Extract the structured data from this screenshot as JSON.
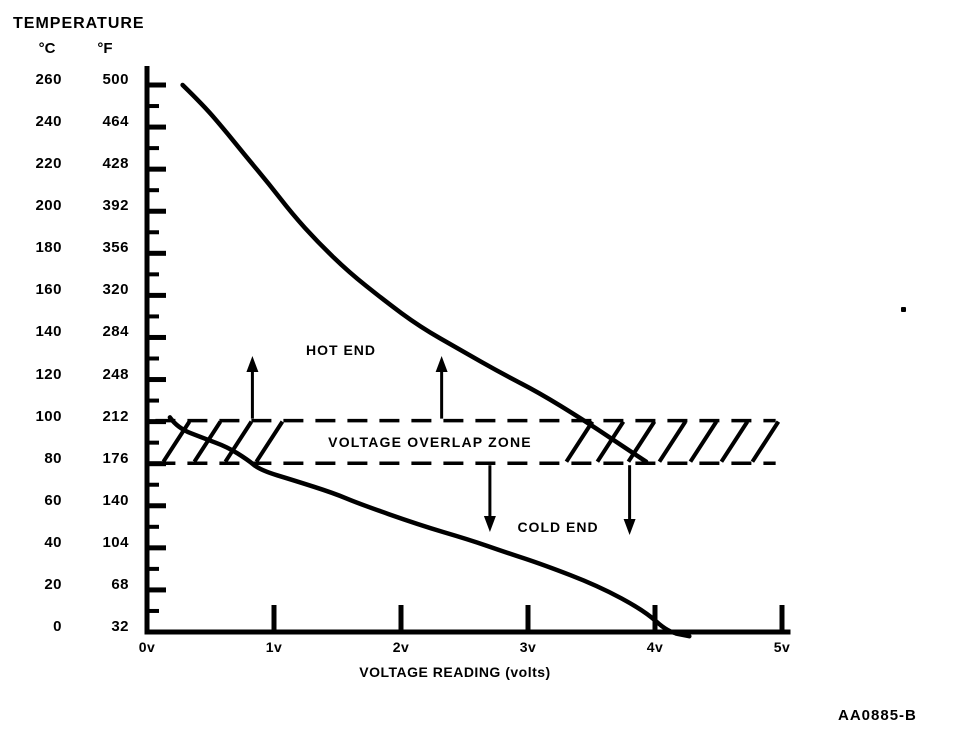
{
  "header": {
    "title": "TEMPERATURE",
    "celsius_unit": "°C",
    "fahrenheit_unit": "°F"
  },
  "y_axis": {
    "celsius_labels": [
      "260",
      "240",
      "220",
      "200",
      "180",
      "160",
      "140",
      "120",
      "100",
      "80",
      "60",
      "40",
      "20",
      "0"
    ],
    "fahrenheit_labels": [
      "500",
      "464",
      "428",
      "392",
      "356",
      "320",
      "284",
      "248",
      "212",
      "176",
      "140",
      "104",
      "68",
      "32"
    ]
  },
  "x_axis": {
    "tick_labels": [
      "0v",
      "1v",
      "2v",
      "3v",
      "4v",
      "5v"
    ],
    "axis_label": "VOLTAGE READING (volts)"
  },
  "annotations": {
    "hot_end": "HOT END",
    "overlap_zone": "VOLTAGE OVERLAP ZONE",
    "cold_end": "COLD END",
    "figure_code": "AA0885-B"
  },
  "colors": {
    "ink": "#000000",
    "paper": "#ffffff"
  },
  "chart_data": {
    "type": "line",
    "title": "",
    "xlabel": "VOLTAGE READING (volts)",
    "ylabel_primary": "TEMPERATURE °C",
    "ylabel_secondary": "TEMPERATURE °F",
    "xlim_volts": [
      0,
      5
    ],
    "ylim_celsius": [
      0,
      260
    ],
    "x_tick_step_volts": 1,
    "y_label_step_celsius": 20,
    "y_minor_tick_step_celsius": 10,
    "grid": false,
    "legend": "none (curves labeled inline)",
    "overlap_zone": {
      "label": "VOLTAGE OVERLAP ZONE",
      "celsius_range": [
        80,
        100
      ],
      "fahrenheit_range": [
        176,
        212
      ],
      "volts_extent": [
        0.2,
        4.95
      ],
      "style": "diagonal-hatched band with dashed top/bottom borders"
    },
    "arrows": {
      "up_volts": [
        0.83,
        2.32
      ],
      "down_volts": [
        2.7,
        3.8
      ]
    },
    "series": [
      {
        "name": "HOT END",
        "points_volts_celsius": [
          [
            0.28,
            260
          ],
          [
            0.45,
            250
          ],
          [
            0.62,
            238
          ],
          [
            0.78,
            226
          ],
          [
            0.96,
            213
          ],
          [
            1.14,
            199
          ],
          [
            1.35,
            185
          ],
          [
            1.59,
            171
          ],
          [
            1.86,
            158
          ],
          [
            2.15,
            145
          ],
          [
            2.47,
            134
          ],
          [
            2.79,
            123
          ],
          [
            3.08,
            114
          ],
          [
            3.43,
            101
          ],
          [
            3.68,
            91
          ],
          [
            3.93,
            81
          ]
        ]
      },
      {
        "name": "COLD END",
        "points_volts_celsius": [
          [
            0.18,
            102
          ],
          [
            0.24,
            97
          ],
          [
            0.45,
            92
          ],
          [
            0.63,
            88
          ],
          [
            0.79,
            82
          ],
          [
            0.89,
            77
          ],
          [
            1.16,
            72
          ],
          [
            1.47,
            66
          ],
          [
            1.67,
            61
          ],
          [
            2.14,
            51
          ],
          [
            2.53,
            44
          ],
          [
            2.82,
            38
          ],
          [
            3.12,
            32
          ],
          [
            3.55,
            22
          ],
          [
            3.92,
            10
          ],
          [
            4.1,
            0
          ],
          [
            4.27,
            -2
          ]
        ]
      }
    ]
  }
}
